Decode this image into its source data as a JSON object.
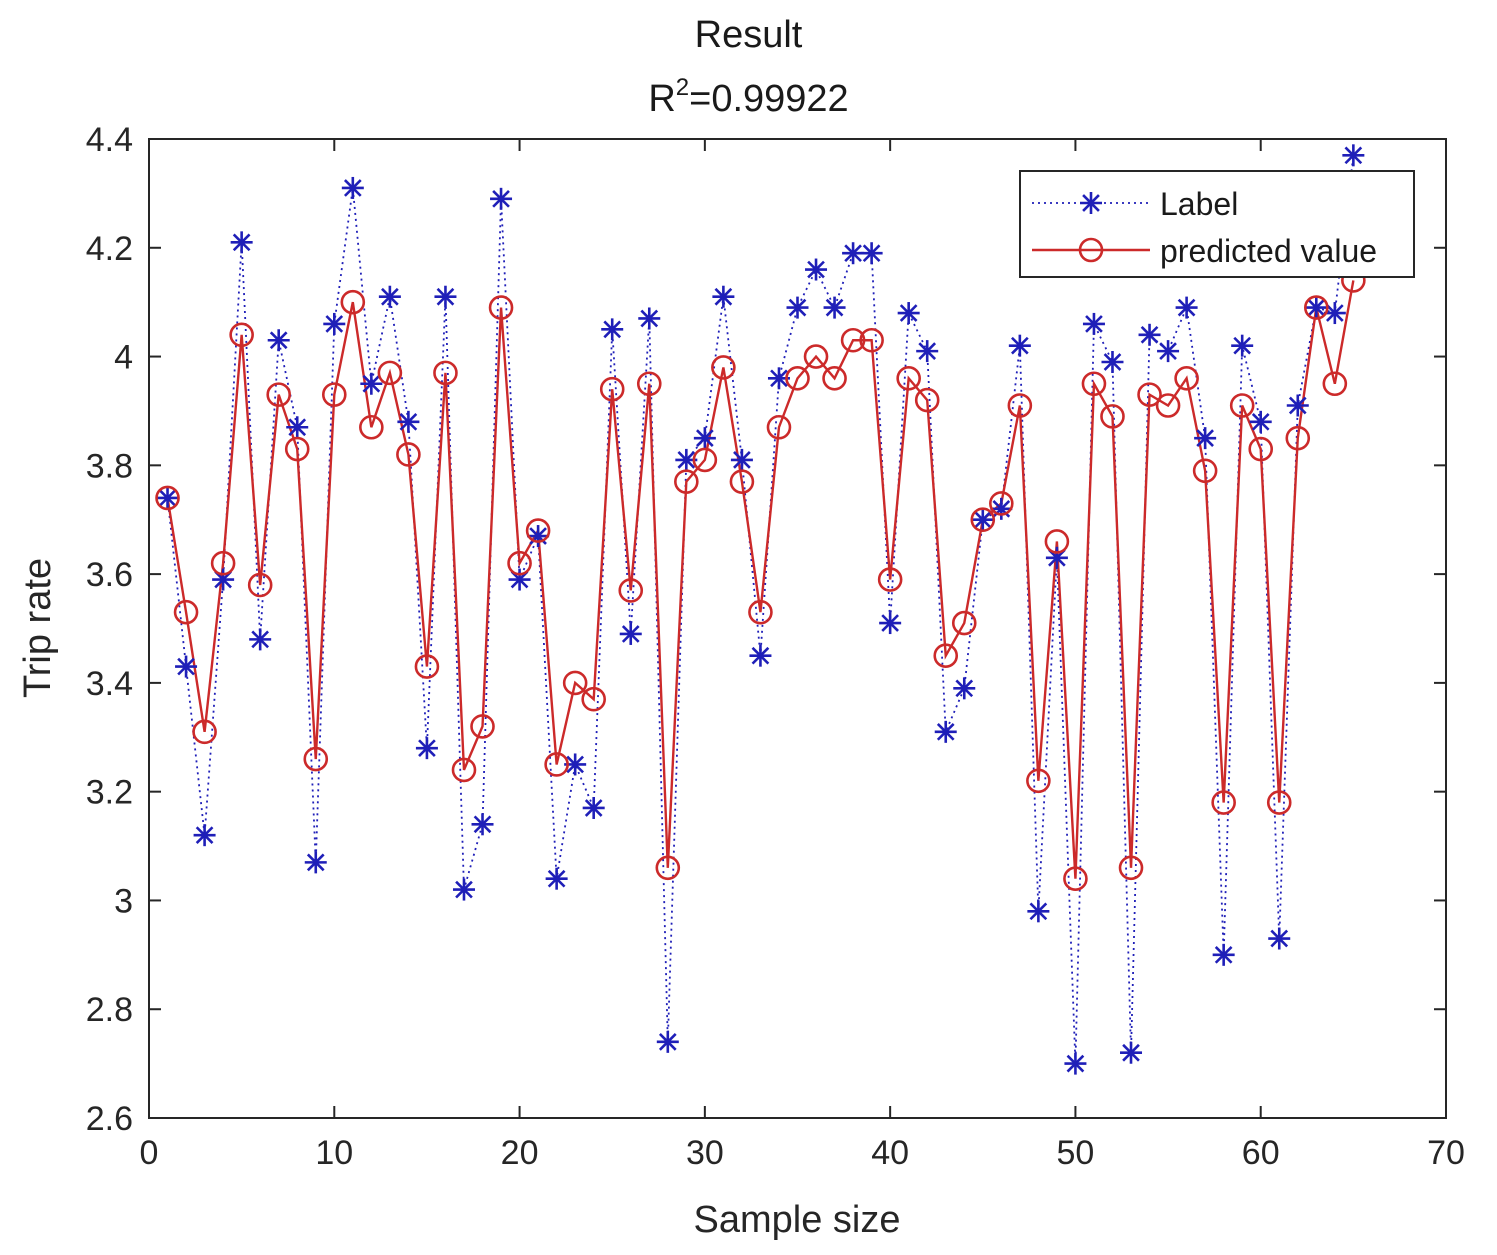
{
  "chart_data": {
    "type": "line",
    "title": "Result",
    "subtitle_prefix": "R",
    "subtitle_sup": "2",
    "subtitle_rest": "=0.99922",
    "xlabel": "Sample size",
    "ylabel": "Trip rate",
    "xlim": [
      0,
      70
    ],
    "ylim": [
      2.6,
      4.4
    ],
    "xticks": [
      0,
      10,
      20,
      30,
      40,
      50,
      60,
      70
    ],
    "yticks": [
      2.6,
      2.8,
      3,
      3.2,
      3.4,
      3.6,
      3.8,
      4,
      4.2,
      4.4
    ],
    "ytick_labels": [
      "2.6",
      "2.8",
      "3",
      "3.2",
      "3.4",
      "3.6",
      "3.8",
      "4",
      "4.2",
      "4.4"
    ],
    "grid": false,
    "legend_position": "top-right",
    "x": [
      1,
      2,
      3,
      4,
      5,
      6,
      7,
      8,
      9,
      10,
      11,
      12,
      13,
      14,
      15,
      16,
      17,
      18,
      19,
      20,
      21,
      22,
      23,
      24,
      25,
      26,
      27,
      28,
      29,
      30,
      31,
      32,
      33,
      34,
      35,
      36,
      37,
      38,
      39,
      40,
      41,
      42,
      43,
      44,
      45,
      46,
      47,
      48,
      49,
      50,
      51,
      52,
      53,
      54,
      55,
      56,
      57,
      58,
      59,
      60,
      61,
      62,
      63,
      64,
      65
    ],
    "series": [
      {
        "name": "Label",
        "color": "#1f1fb8",
        "marker": "asterisk",
        "line": "dotted",
        "values": [
          3.74,
          3.43,
          3.12,
          3.59,
          4.21,
          3.48,
          4.03,
          3.87,
          3.07,
          4.06,
          4.31,
          3.95,
          4.11,
          3.88,
          3.28,
          4.11,
          3.02,
          3.14,
          4.29,
          3.59,
          3.67,
          3.04,
          3.25,
          3.17,
          4.05,
          3.49,
          4.07,
          2.74,
          3.81,
          3.85,
          4.11,
          3.81,
          3.45,
          3.96,
          4.09,
          4.16,
          4.09,
          4.19,
          4.19,
          3.51,
          4.08,
          4.01,
          3.31,
          3.39,
          3.7,
          3.72,
          4.02,
          2.98,
          3.63,
          2.7,
          4.06,
          3.99,
          2.72,
          4.04,
          4.01,
          4.09,
          3.85,
          2.9,
          4.02,
          3.88,
          2.93,
          3.91,
          4.09,
          4.08,
          4.37
        ]
      },
      {
        "name": "predicted value",
        "color": "#cc2a2a",
        "marker": "circle",
        "line": "solid",
        "values": [
          3.74,
          3.53,
          3.31,
          3.62,
          4.04,
          3.58,
          3.93,
          3.83,
          3.26,
          3.93,
          4.1,
          3.87,
          3.97,
          3.82,
          3.43,
          3.97,
          3.24,
          3.32,
          4.09,
          3.62,
          3.68,
          3.25,
          3.4,
          3.37,
          3.94,
          3.57,
          3.95,
          3.06,
          3.77,
          3.81,
          3.98,
          3.77,
          3.53,
          3.87,
          3.96,
          4.0,
          3.96,
          4.03,
          4.03,
          3.59,
          3.96,
          3.92,
          3.45,
          3.51,
          3.7,
          3.73,
          3.91,
          3.22,
          3.66,
          3.04,
          3.95,
          3.89,
          3.06,
          3.93,
          3.91,
          3.96,
          3.79,
          3.18,
          3.91,
          3.83,
          3.18,
          3.85,
          4.09,
          3.95,
          4.14
        ]
      }
    ]
  }
}
